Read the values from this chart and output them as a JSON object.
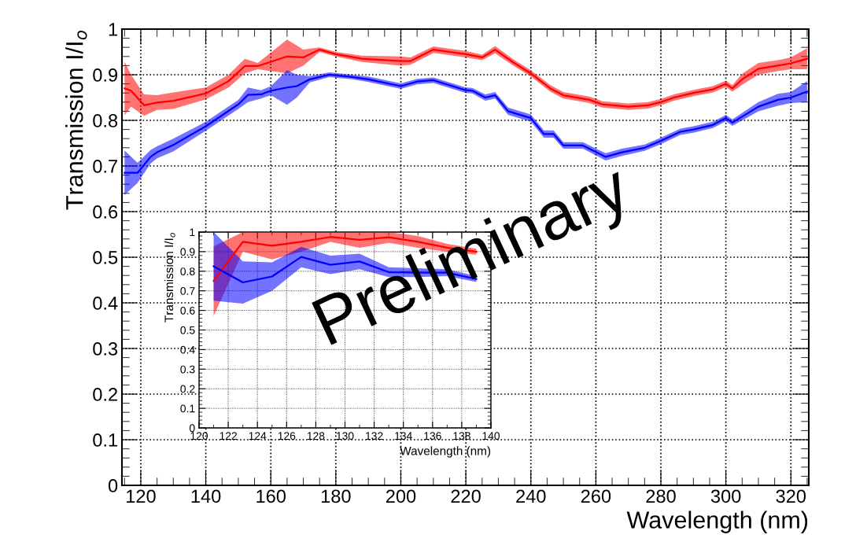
{
  "chart_data": [
    {
      "type": "line",
      "xlabel": "Wavelength (nm)",
      "ylabel": "Transmission I/I$_{o}$",
      "xlim": [
        114.2,
        325.5
      ],
      "ylim": [
        0,
        1
      ],
      "xticks": [
        120,
        140,
        160,
        180,
        200,
        220,
        240,
        260,
        280,
        300,
        320
      ],
      "yticks": [
        0,
        0.1,
        0.2,
        0.3,
        0.4,
        0.5,
        0.6,
        0.7,
        0.8,
        0.9,
        1
      ],
      "grid": true,
      "annotations": [
        "Preliminary"
      ],
      "series": [
        {
          "color": "#ff0000",
          "x": [
            115,
            117,
            121,
            125,
            130,
            140,
            147,
            152,
            156,
            165,
            170,
            175,
            180,
            188,
            200,
            203,
            210,
            220,
            225,
            229,
            235,
            240,
            246,
            250,
            258,
            262,
            270,
            276,
            280,
            284,
            290,
            296,
            300,
            302,
            305,
            310,
            316,
            320,
            325
          ],
          "values": [
            0.87,
            0.865,
            0.833,
            0.839,
            0.843,
            0.859,
            0.886,
            0.919,
            0.919,
            0.94,
            0.938,
            0.955,
            0.945,
            0.935,
            0.93,
            0.93,
            0.955,
            0.945,
            0.938,
            0.955,
            0.925,
            0.903,
            0.87,
            0.855,
            0.845,
            0.835,
            0.83,
            0.833,
            0.84,
            0.85,
            0.86,
            0.868,
            0.88,
            0.87,
            0.89,
            0.913,
            0.92,
            0.925,
            0.935
          ],
          "lower": [
            0.811,
            0.83,
            0.81,
            0.823,
            0.825,
            0.846,
            0.872,
            0.903,
            0.912,
            0.903,
            0.92,
            0.95,
            0.94,
            0.928,
            0.92,
            0.922,
            0.948,
            0.938,
            0.932,
            0.947,
            0.918,
            0.896,
            0.863,
            0.848,
            0.838,
            0.828,
            0.823,
            0.826,
            0.833,
            0.843,
            0.853,
            0.861,
            0.873,
            0.863,
            0.878,
            0.9,
            0.908,
            0.912,
            0.912
          ],
          "upper": [
            0.929,
            0.9,
            0.857,
            0.855,
            0.861,
            0.872,
            0.9,
            0.935,
            0.926,
            0.977,
            0.955,
            0.96,
            0.95,
            0.942,
            0.94,
            0.938,
            0.962,
            0.952,
            0.944,
            0.963,
            0.932,
            0.91,
            0.877,
            0.862,
            0.852,
            0.842,
            0.837,
            0.84,
            0.847,
            0.857,
            0.867,
            0.875,
            0.887,
            0.877,
            0.902,
            0.926,
            0.932,
            0.938,
            0.958
          ]
        },
        {
          "color": "#0000ff",
          "x": [
            115,
            119,
            123,
            125,
            130,
            140,
            150,
            153,
            157,
            160,
            165,
            168,
            172,
            178,
            185,
            190,
            200,
            205,
            210,
            220,
            222,
            226,
            229,
            233,
            240,
            244,
            247,
            250,
            256,
            263,
            268,
            275,
            280,
            286,
            290,
            296,
            300,
            302,
            310,
            316,
            320,
            325
          ],
          "values": [
            0.685,
            0.685,
            0.72,
            0.73,
            0.746,
            0.787,
            0.835,
            0.856,
            0.857,
            0.865,
            0.872,
            0.875,
            0.89,
            0.9,
            0.895,
            0.89,
            0.875,
            0.885,
            0.888,
            0.866,
            0.865,
            0.85,
            0.855,
            0.82,
            0.805,
            0.77,
            0.77,
            0.745,
            0.745,
            0.72,
            0.73,
            0.74,
            0.755,
            0.775,
            0.78,
            0.79,
            0.805,
            0.795,
            0.83,
            0.845,
            0.85,
            0.863
          ],
          "lower": [
            0.636,
            0.663,
            0.705,
            0.717,
            0.732,
            0.777,
            0.825,
            0.84,
            0.848,
            0.855,
            0.834,
            0.85,
            0.883,
            0.895,
            0.89,
            0.884,
            0.869,
            0.879,
            0.882,
            0.86,
            0.859,
            0.843,
            0.848,
            0.812,
            0.797,
            0.762,
            0.762,
            0.738,
            0.738,
            0.712,
            0.722,
            0.733,
            0.748,
            0.768,
            0.773,
            0.783,
            0.798,
            0.788,
            0.82,
            0.832,
            0.838,
            0.84
          ],
          "upper": [
            0.734,
            0.707,
            0.735,
            0.743,
            0.76,
            0.797,
            0.845,
            0.872,
            0.866,
            0.875,
            0.91,
            0.9,
            0.897,
            0.905,
            0.9,
            0.896,
            0.881,
            0.891,
            0.894,
            0.872,
            0.871,
            0.857,
            0.862,
            0.828,
            0.813,
            0.778,
            0.778,
            0.752,
            0.752,
            0.728,
            0.738,
            0.747,
            0.762,
            0.782,
            0.787,
            0.797,
            0.812,
            0.802,
            0.84,
            0.858,
            0.862,
            0.886
          ]
        }
      ]
    },
    {
      "type": "line",
      "xlabel": "Wavelength (nm)",
      "ylabel": "Transmission I/I$_{o}$",
      "xlim": [
        120,
        140
      ],
      "ylim": [
        0,
        1
      ],
      "xticks": [
        120,
        122,
        124,
        126,
        128,
        130,
        132,
        134,
        136,
        138,
        140
      ],
      "yticks": [
        0,
        0.1,
        0.2,
        0.3,
        0.4,
        0.5,
        0.6,
        0.7,
        0.8,
        0.9,
        1
      ],
      "grid": true,
      "series": [
        {
          "color": "#ff0000",
          "x": [
            121,
            123,
            125,
            127,
            129,
            131,
            133,
            135,
            137,
            139
          ],
          "values": [
            0.75,
            0.95,
            0.93,
            0.95,
            0.975,
            0.96,
            0.973,
            0.95,
            0.92,
            0.9
          ],
          "lower": [
            0.572,
            0.9,
            0.86,
            0.9,
            0.95,
            0.92,
            0.945,
            0.92,
            0.9,
            0.885
          ],
          "upper": [
            0.927,
            1.0,
            1.0,
            1.0,
            1.0,
            1.0,
            1.0,
            0.98,
            0.94,
            0.915
          ]
        },
        {
          "color": "#0000ff",
          "x": [
            121,
            123,
            125,
            127,
            129,
            131,
            133,
            135,
            137,
            139
          ],
          "values": [
            0.825,
            0.743,
            0.773,
            0.873,
            0.833,
            0.85,
            0.795,
            0.793,
            0.793,
            0.76
          ],
          "lower": [
            0.65,
            0.635,
            0.7,
            0.82,
            0.785,
            0.81,
            0.77,
            0.77,
            0.775,
            0.745
          ],
          "upper": [
            1.0,
            0.85,
            0.845,
            0.925,
            0.88,
            0.89,
            0.82,
            0.815,
            0.81,
            0.775
          ]
        }
      ]
    }
  ]
}
